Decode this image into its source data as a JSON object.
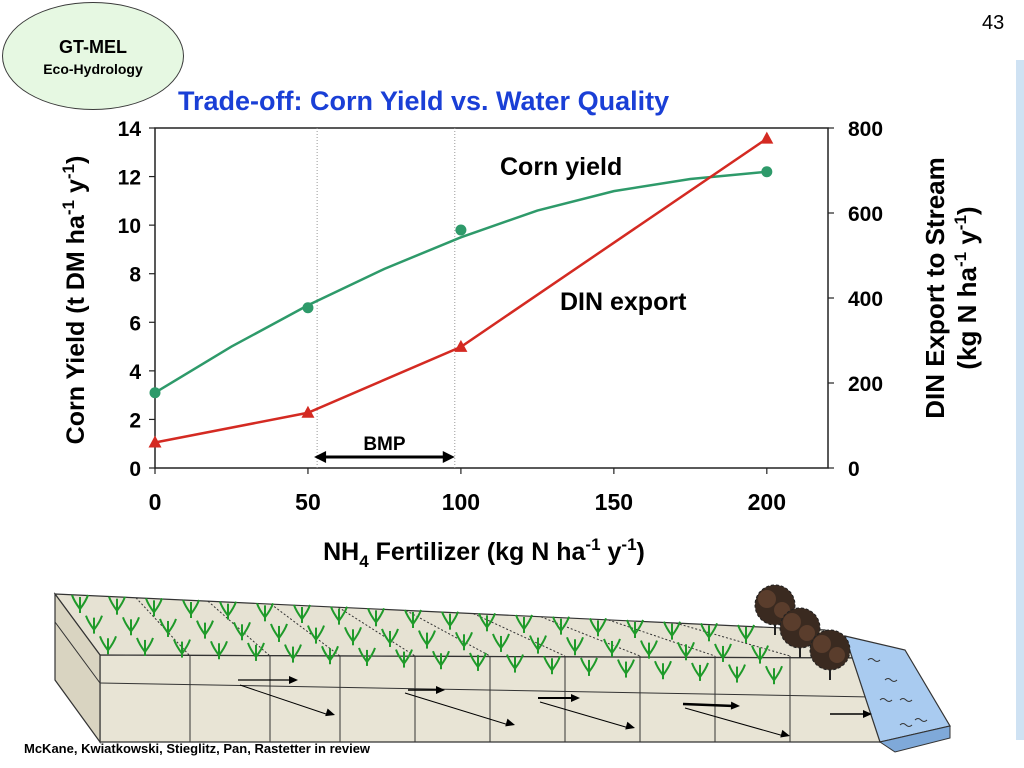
{
  "slide_number": "43",
  "badge": {
    "title": "GT-MEL",
    "subtitle": "Eco-Hydrology"
  },
  "title": "Trade-off:  Corn Yield vs. Water Quality",
  "citation": "McKane, Kwiatkowski, Stieglitz, Pan, Rastetter in review",
  "chart_data": {
    "type": "line",
    "title": "Trade-off:  Corn Yield vs. Water Quality",
    "xlabel": "NH4 Fertilizer (kg N ha-1 y-1)",
    "xlabel_parts": {
      "main": "NH",
      "sub": "4",
      "rest": " Fertilizer (kg N ha",
      "sup1": "-1",
      "mid": " y",
      "sup2": "-1",
      "end": ")"
    },
    "ylabel_left": "Corn Yield (t DM ha-1 y-1)",
    "ylabel_left_parts": {
      "main": "Corn Yield (t DM ha",
      "sup1": "-1",
      "mid": " y",
      "sup2": "-1",
      "end": ")"
    },
    "ylabel_right_line1": "DIN Export to Stream",
    "ylabel_right_line2": "(kg N ha-1 y-1)",
    "ylabel_right_parts": {
      "main": "(kg N ha",
      "sup1": "-1",
      "mid": " y",
      "sup2": "-1",
      "end": ")"
    },
    "x_ticks": [
      0,
      50,
      100,
      150,
      200
    ],
    "xlim": [
      0,
      220
    ],
    "ylim_left": [
      0,
      14
    ],
    "y_ticks_left": [
      0,
      2,
      4,
      6,
      8,
      10,
      12,
      14
    ],
    "ylim_right": [
      0,
      800
    ],
    "y_ticks_right": [
      0,
      200,
      400,
      600,
      800
    ],
    "grid": false,
    "series": [
      {
        "name": "Corn yield",
        "axis": "left",
        "color": "#2e9a6a",
        "marker": "circle",
        "x": [
          0,
          50,
          100,
          200
        ],
        "values": [
          3.1,
          6.6,
          9.8,
          12.2
        ],
        "fit_curve": {
          "x": [
            0,
            25,
            50,
            75,
            100,
            125,
            150,
            175,
            200
          ],
          "values": [
            3.1,
            5.0,
            6.7,
            8.2,
            9.5,
            10.6,
            11.4,
            11.9,
            12.2
          ]
        }
      },
      {
        "name": "DIN export",
        "axis": "right",
        "color": "#d42a22",
        "marker": "triangle",
        "x": [
          0,
          50,
          100,
          200
        ],
        "values": [
          60,
          130,
          285,
          775
        ]
      }
    ],
    "annotations": [
      {
        "text": "BMP",
        "type": "double-arrow",
        "x_from": 52,
        "x_to": 98
      }
    ],
    "reference_lines_x": [
      53,
      98
    ]
  },
  "illustration": {
    "description_icons": [
      "corn-plants",
      "trees",
      "stream",
      "subsurface-flow-arrows"
    ]
  }
}
